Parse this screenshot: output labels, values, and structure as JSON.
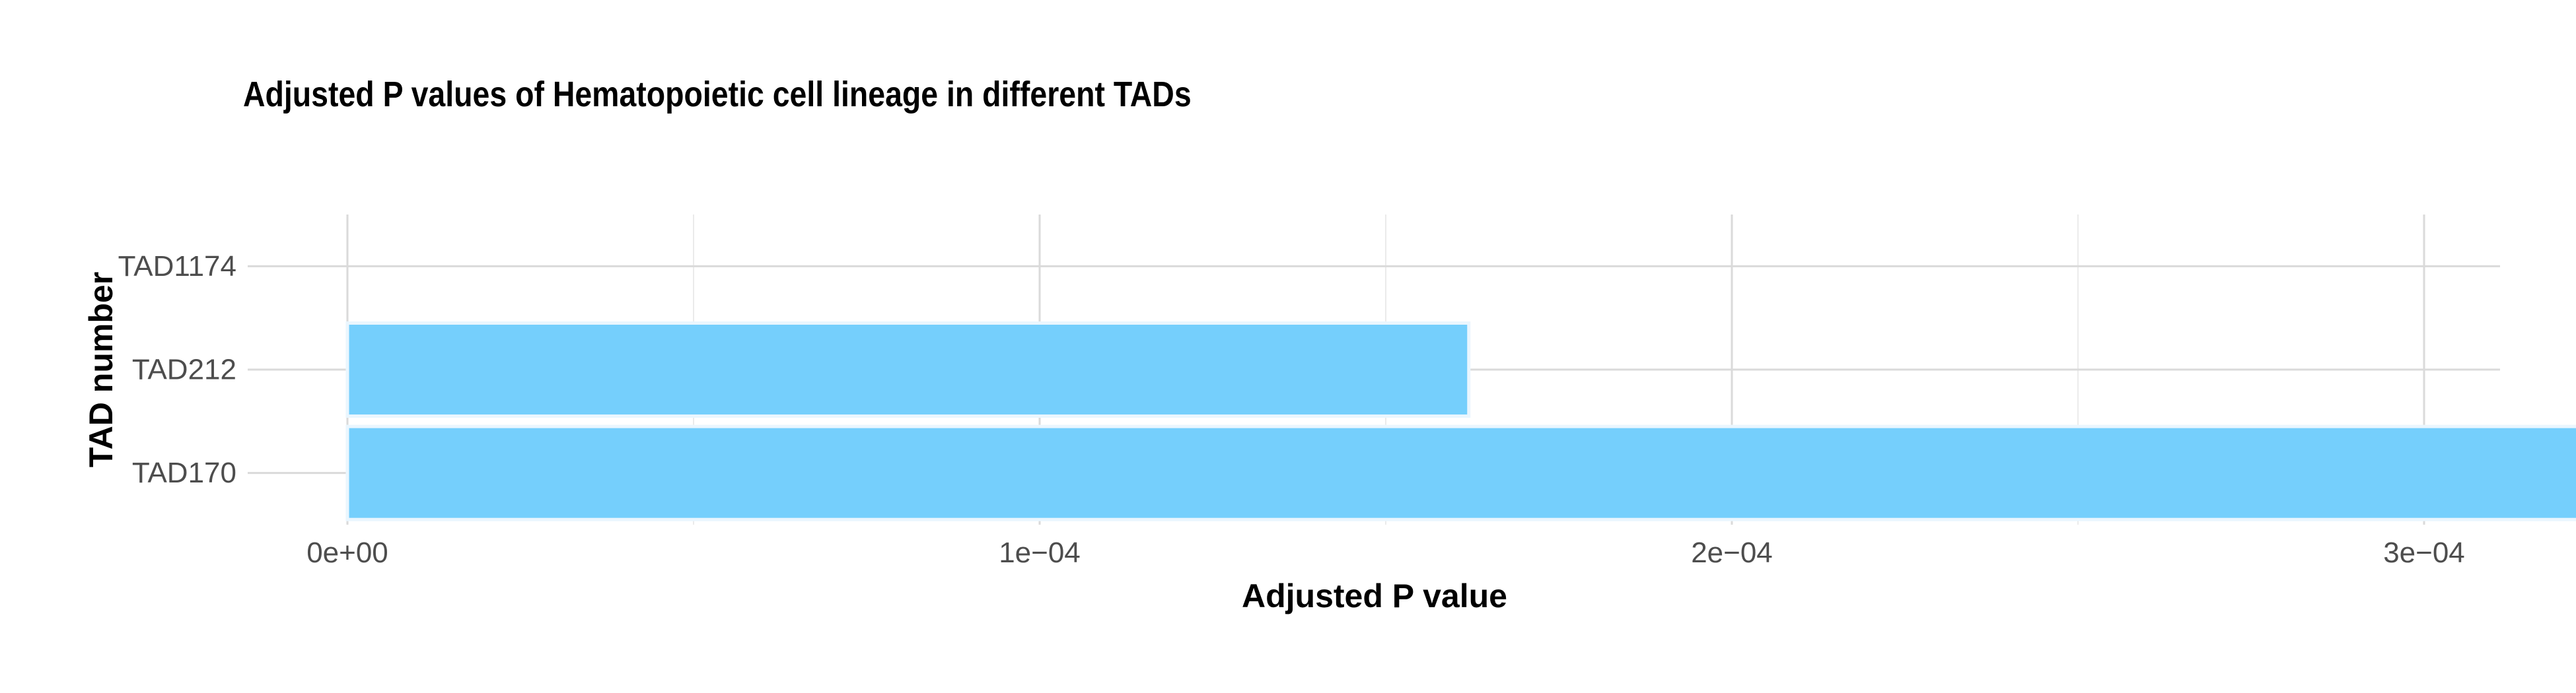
{
  "chart_data": {
    "type": "bar",
    "orientation": "horizontal",
    "title": "Adjusted P values of Hematopoietic cell lineage in different TADs",
    "xlabel": "Adjusted P value",
    "ylabel": "TAD number",
    "categories": [
      "TAD1174",
      "TAD212",
      "TAD170"
    ],
    "values": [
      0,
      0.000162,
      0.000346
    ],
    "xlim": [
      0,
      0.00035
    ],
    "xticks": [
      0,
      0.0001,
      0.0002,
      0.0003
    ],
    "xtick_labels": [
      "0e+00",
      "1e−04",
      "2e−04",
      "3e−04"
    ],
    "grid": true,
    "legend": "none",
    "colors": {
      "bar_fill": "#75CFFC",
      "bar_stroke": "#EAF6FE",
      "grid_major": "#DADADA",
      "grid_minor": "#EBEBEB",
      "tick_text": "#4D4D4D",
      "title_text": "#000000"
    }
  }
}
